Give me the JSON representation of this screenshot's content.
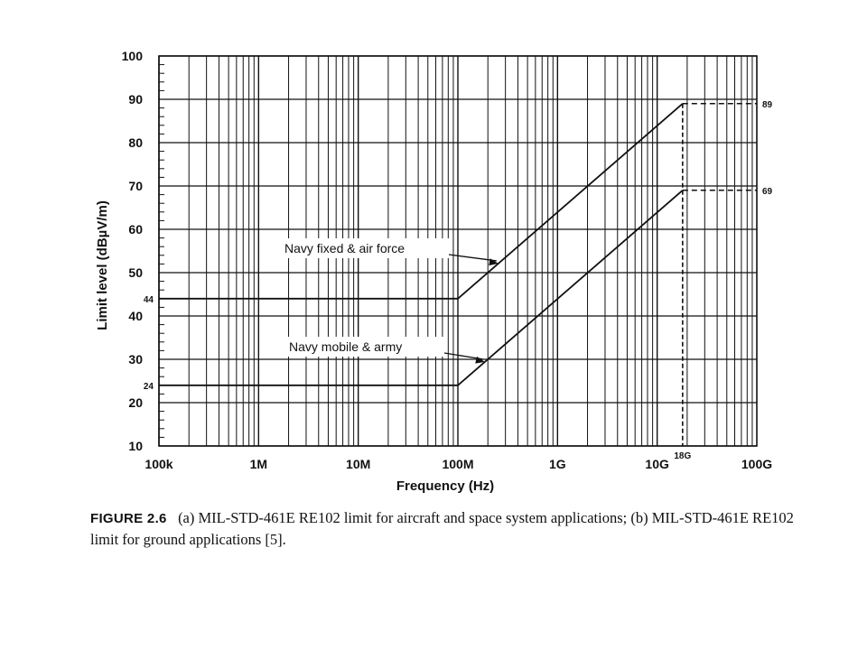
{
  "chart_data": {
    "type": "line",
    "xlabel": "Frequency (Hz)",
    "ylabel": "Limit level (dBµV/m)",
    "x_scale": "log",
    "xlim": [
      100000,
      100000000000
    ],
    "ylim": [
      10,
      100
    ],
    "grid": true,
    "x_ticks": [
      {
        "value": 100000,
        "label": "100k"
      },
      {
        "value": 1000000,
        "label": "1M"
      },
      {
        "value": 10000000,
        "label": "10M"
      },
      {
        "value": 100000000,
        "label": "100M"
      },
      {
        "value": 1000000000,
        "label": "1G"
      },
      {
        "value": 10000000000,
        "label": "10G"
      },
      {
        "value": 100000000000,
        "label": "100G"
      }
    ],
    "y_ticks": [
      10,
      20,
      30,
      40,
      50,
      60,
      70,
      80,
      90,
      100
    ],
    "series": [
      {
        "name": "Navy fixed & air force",
        "x": [
          100000,
          100000000,
          18000000000
        ],
        "y": [
          44,
          44,
          89
        ]
      },
      {
        "name": "Navy mobile & army",
        "x": [
          100000,
          100000000,
          18000000000
        ],
        "y": [
          24,
          24,
          69
        ]
      }
    ],
    "reference_marks": {
      "x_value": 18000000000,
      "x_label": "18G",
      "levels": [
        {
          "y": 44,
          "label": "44",
          "side": "left"
        },
        {
          "y": 24,
          "label": "24",
          "side": "left"
        },
        {
          "y": 89,
          "label": "89",
          "side": "right"
        },
        {
          "y": 69,
          "label": "69",
          "side": "right"
        }
      ]
    }
  },
  "caption": {
    "label": "FIGURE 2.6",
    "text": "(a) MIL-STD-461E RE102 limit for aircraft and space system applications; (b) MIL-STD-461E RE102 limit for ground applications [5]."
  }
}
